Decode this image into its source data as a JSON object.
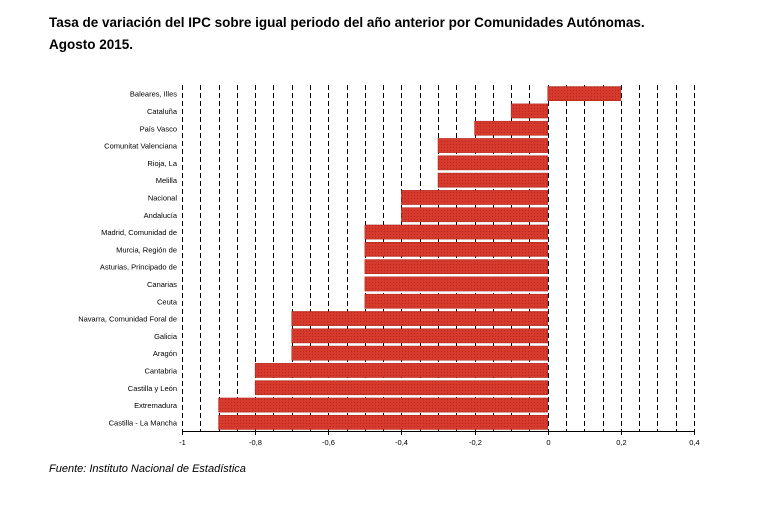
{
  "title_line1": "Tasa de variación del IPC sobre igual periodo del año anterior por Comunidades Autónomas.",
  "title_line2": "Agosto 2015.",
  "source": "Fuente: Instituto Nacional de Estadística",
  "colors": {
    "bar": "#d63a2c",
    "bar_border": "#a82218"
  },
  "chart_data": {
    "type": "bar",
    "orientation": "horizontal",
    "title": "Tasa de variación del IPC sobre igual periodo del año anterior por Comunidades Autónomas. Agosto 2015.",
    "xlabel": "",
    "ylabel": "",
    "xlim": [
      -1,
      0.4
    ],
    "xticks": [
      -1,
      -0.8,
      -0.6,
      -0.4,
      -0.2,
      0,
      0.2,
      0.4
    ],
    "xtick_labels": [
      "-1",
      "-0,8",
      "-0,6",
      "-0,4",
      "-0,2",
      "0",
      "0,2",
      "0,4"
    ],
    "grid": "vertical dashed",
    "categories": [
      "Baleares, Illes",
      "Cataluña",
      "País Vasco",
      "Comunitat Valenciana",
      "Rioja, La",
      "Melilla",
      "Nacional",
      "Andalucía",
      "Madrid, Comunidad de",
      "Murcia, Región de",
      "Asturias, Principado de",
      "Canarias",
      "Ceuta",
      "Navarra, Comunidad Foral de",
      "Galicia",
      "Aragón",
      "Cantabria",
      "Castilla y León",
      "Extremadura",
      "Castilla - La Mancha"
    ],
    "values": [
      0.2,
      -0.1,
      -0.2,
      -0.3,
      -0.3,
      -0.3,
      -0.4,
      -0.4,
      -0.5,
      -0.5,
      -0.5,
      -0.5,
      -0.5,
      -0.7,
      -0.7,
      -0.7,
      -0.8,
      -0.8,
      -0.9,
      -0.9
    ]
  }
}
